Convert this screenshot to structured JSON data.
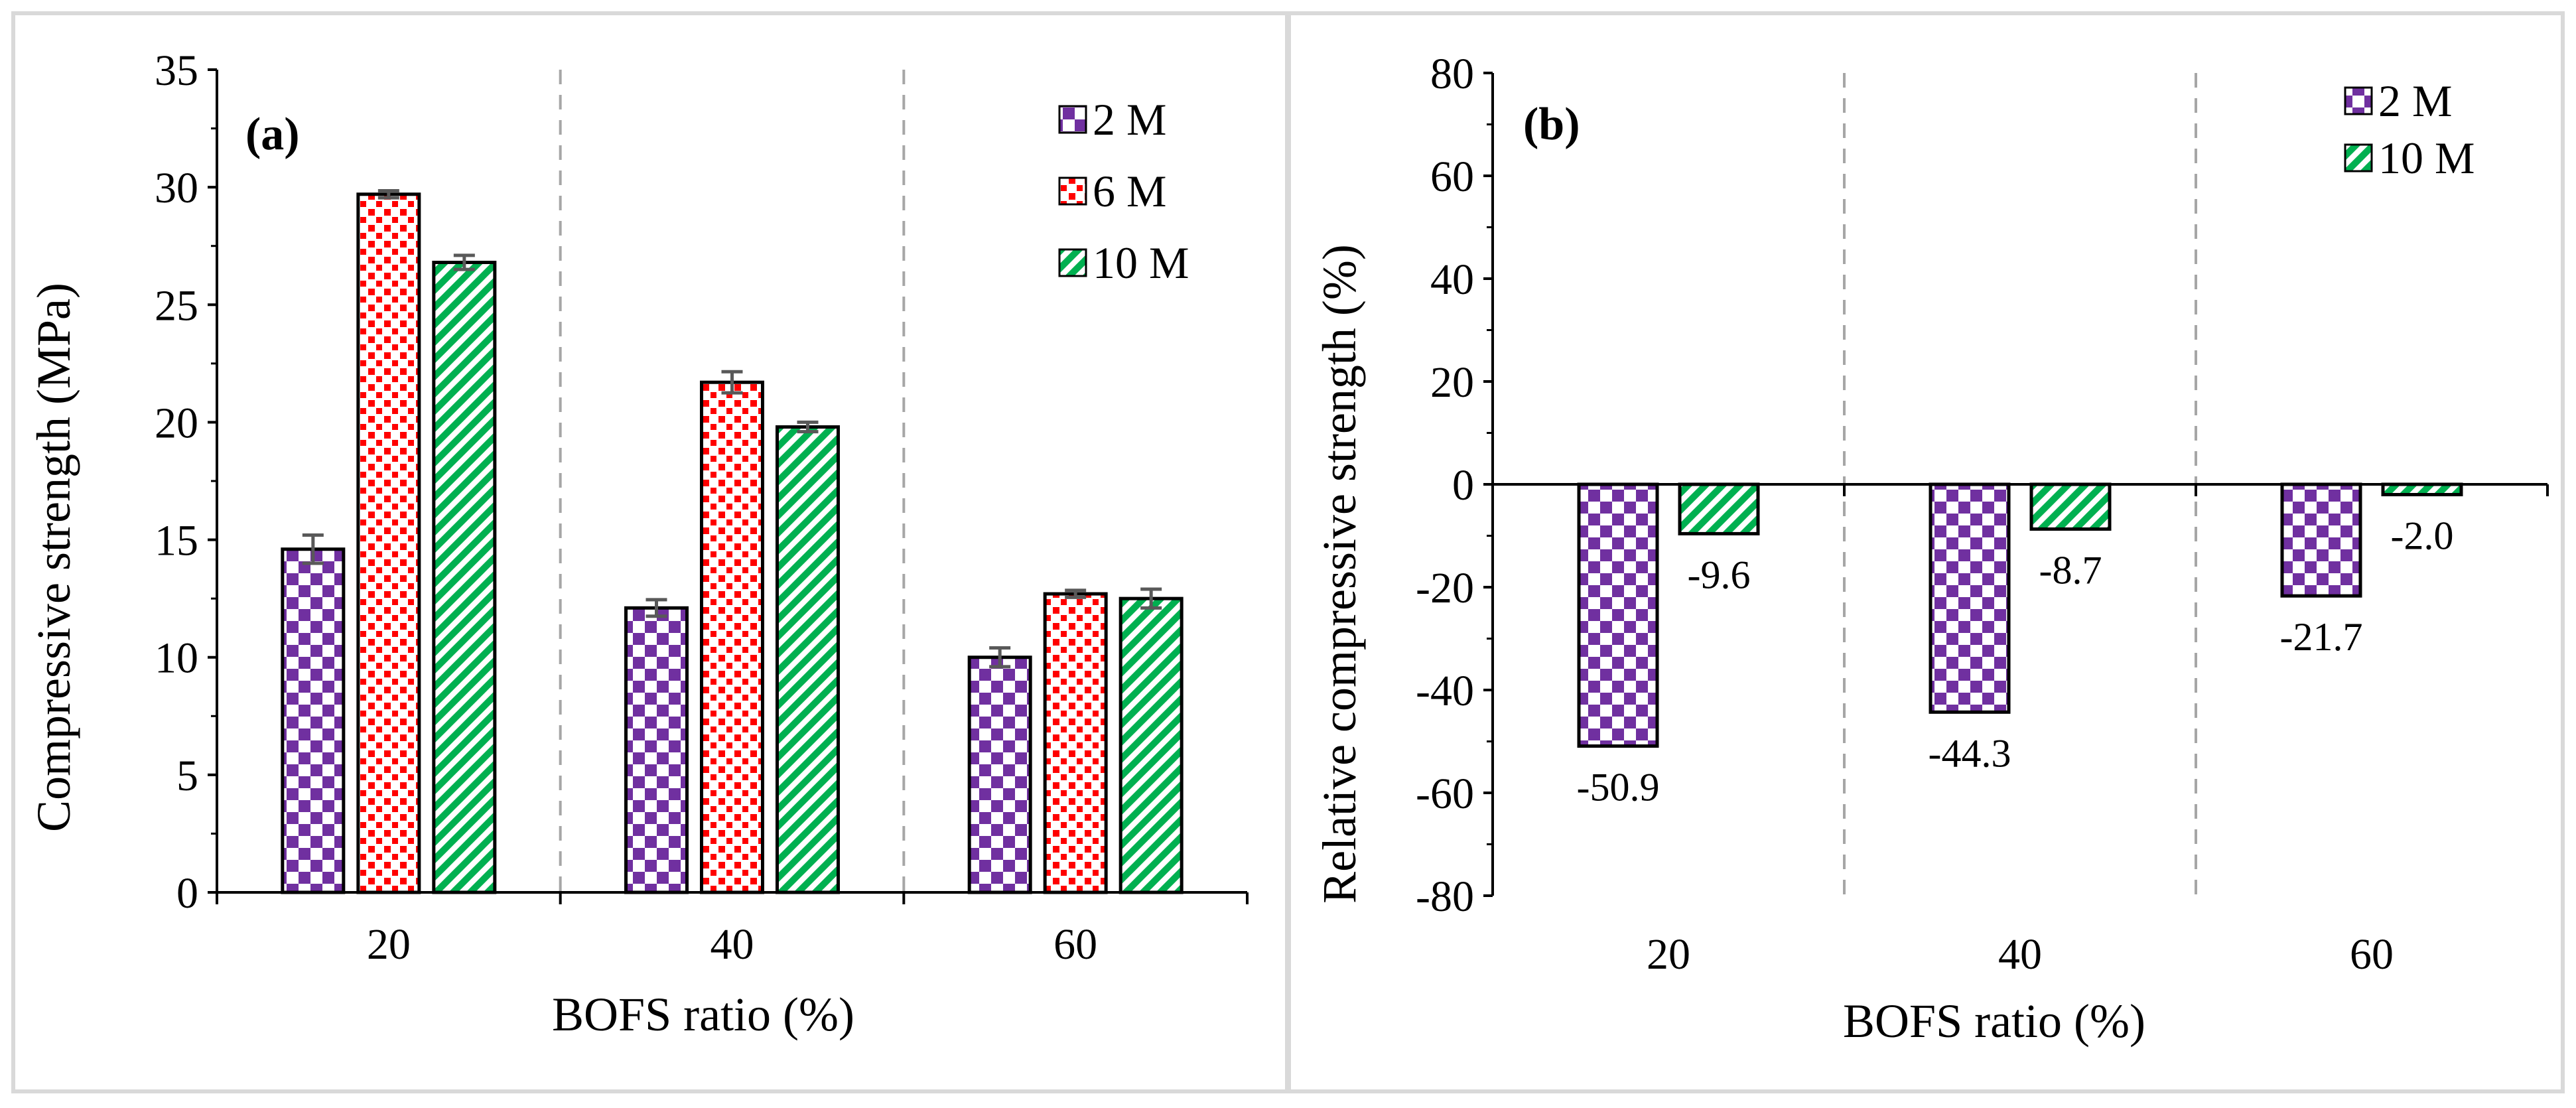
{
  "colors": {
    "series_2M": "#7030a0",
    "series_6M": "#ff0000",
    "series_10M": "#00b050",
    "errorbar": "#595959",
    "divider": "#a6a6a6",
    "panel_border": "#d9d9d9"
  },
  "chart_data": [
    {
      "type": "bar",
      "panel_label": "(a)",
      "categories": [
        "20",
        "40",
        "60"
      ],
      "series": [
        {
          "name": "2 M",
          "values": [
            14.6,
            12.1,
            10.0
          ],
          "errors": [
            0.6,
            0.35,
            0.4
          ],
          "pattern": "checker"
        },
        {
          "name": "6 M",
          "values": [
            29.7,
            21.7,
            12.7
          ],
          "errors": [
            0.15,
            0.45,
            0.15
          ],
          "pattern": "dots"
        },
        {
          "name": "10 M",
          "values": [
            26.8,
            19.8,
            12.5
          ],
          "errors": [
            0.3,
            0.2,
            0.4
          ],
          "pattern": "diagonal"
        }
      ],
      "xlabel": "BOFS ratio (%)",
      "ylabel": "Compressive strength (MPa)",
      "ylim": [
        0,
        35
      ],
      "yticks": [
        0,
        5,
        10,
        15,
        20,
        25,
        30,
        35
      ],
      "ytick_labels": [
        "0",
        "5",
        "10",
        "15",
        "20",
        "25",
        "30",
        "35"
      ],
      "legend": [
        "2 M",
        "6 M",
        "10 M"
      ],
      "legend_position": "top-right",
      "grid": false
    },
    {
      "type": "bar",
      "panel_label": "(b)",
      "categories": [
        "20",
        "40",
        "60"
      ],
      "series": [
        {
          "name": "2 M",
          "values": [
            -50.9,
            -44.3,
            -21.7
          ],
          "labels": [
            "-50.9",
            "-44.3",
            "-21.7"
          ],
          "pattern": "checker"
        },
        {
          "name": "10 M",
          "values": [
            -9.6,
            -8.7,
            -2.0
          ],
          "labels": [
            "-9.6",
            "-8.7",
            "-2.0"
          ],
          "pattern": "diagonal"
        }
      ],
      "xlabel": "BOFS ratio (%)",
      "ylabel": "Relative compressive strength (%)",
      "ylim": [
        -80,
        80
      ],
      "yticks": [
        -80,
        -60,
        -40,
        -20,
        0,
        20,
        40,
        60,
        80
      ],
      "ytick_labels": [
        "-80",
        "-60",
        "-40",
        "-20",
        "0",
        "20",
        "40",
        "60",
        "80"
      ],
      "legend": [
        "2 M",
        "10 M"
      ],
      "legend_position": "top-right",
      "grid": false
    }
  ]
}
